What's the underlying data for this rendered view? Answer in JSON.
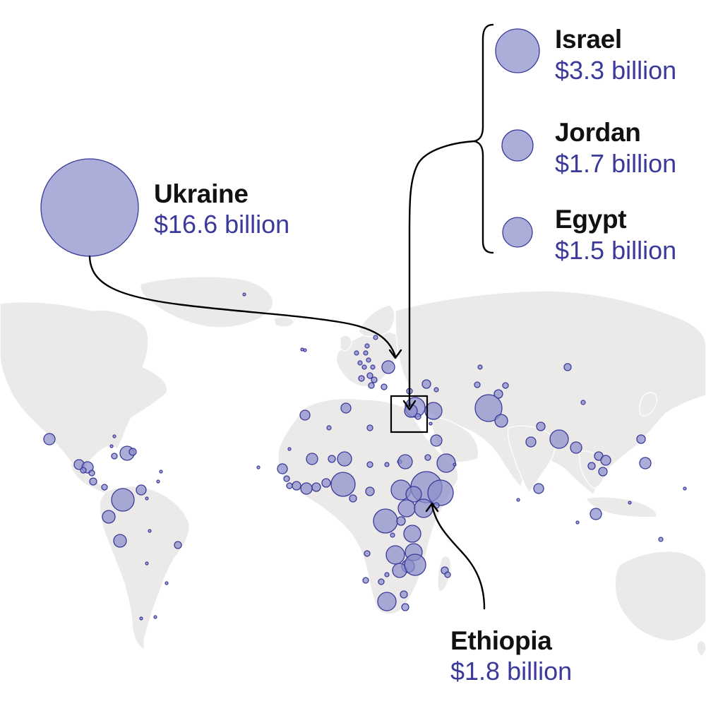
{
  "map": {
    "countries": {
      "ukraine": {
        "name": "Ukraine",
        "amount": "$16.6 billion"
      },
      "israel": {
        "name": "Israel",
        "amount": "$3.3 billion"
      },
      "jordan": {
        "name": "Jordan",
        "amount": "$1.7 billion"
      },
      "egypt": {
        "name": "Egypt",
        "amount": "$1.5 billion"
      },
      "ethiopia": {
        "name": "Ethiopia",
        "amount": "$1.8 billion"
      }
    },
    "colors": {
      "land": "#ece9e9",
      "bubble_fill": "#8b8fcb",
      "bubble_stroke": "#3b3a9a",
      "amount_text": "#3b3a9a",
      "name_text": "#111111",
      "leader_line": "#000000"
    }
  }
}
